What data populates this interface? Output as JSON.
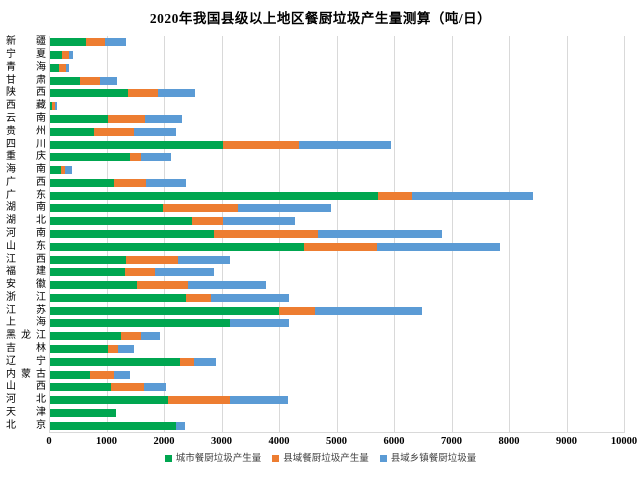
{
  "chart_data": {
    "type": "bar",
    "orientation": "horizontal",
    "stacked": true,
    "title": "2020年我国县级以上地区餐厨垃圾产生量测算（吨/日）",
    "xlim": [
      0,
      10000
    ],
    "x_ticks": [
      0,
      1000,
      2000,
      3000,
      4000,
      5000,
      6000,
      7000,
      8000,
      9000,
      10000
    ],
    "grid": "vertical",
    "legend_position": "bottom",
    "categories": [
      "新疆",
      "宁夏",
      "青海",
      "甘肃",
      "陕西",
      "西藏",
      "云南",
      "贵州",
      "四川",
      "重庆",
      "海南",
      "广西",
      "广东",
      "湖南",
      "湖北",
      "河南",
      "山东",
      "江西",
      "福建",
      "安徽",
      "浙江",
      "江苏",
      "上海",
      "黑龙江",
      "吉林",
      "辽宁",
      "内蒙古",
      "山西",
      "河北",
      "天津",
      "北京"
    ],
    "series": [
      {
        "name": "城市餐厨垃圾产生量",
        "color": "#00A650",
        "values": [
          640,
          220,
          180,
          540,
          1380,
          60,
          1030,
          790,
          3030,
          1410,
          210,
          1135,
          5715,
          1990,
          2485,
          2870,
          4430,
          1340,
          1320,
          1530,
          2375,
          4000,
          3150,
          1260,
          1025,
          2270,
          705,
          1080,
          2070,
          1165,
          2210
        ]
      },
      {
        "name": "县域餐厨垃圾产生量",
        "color": "#ED7D31",
        "values": [
          335,
          130,
          110,
          350,
          520,
          45,
          640,
          695,
          1320,
          190,
          70,
          545,
          590,
          1300,
          535,
          1805,
          1280,
          895,
          530,
          890,
          445,
          625,
          0,
          340,
          175,
          255,
          420,
          570,
          1075,
          0,
          0
        ]
      },
      {
        "name": "县域乡镇餐厨垃圾量",
        "color": "#5B9BD5",
        "values": [
          365,
          75,
          60,
          290,
          640,
          30,
          640,
          720,
          1600,
          515,
          115,
          700,
          2105,
          1615,
          1250,
          2160,
          2140,
          905,
          1020,
          1355,
          1355,
          1860,
          1030,
          335,
          275,
          385,
          285,
          390,
          1010,
          0,
          150
        ]
      }
    ]
  },
  "style": {
    "gridline_color": "#D9D9D9",
    "axis_color": "#D9D9D9",
    "text_color": "#000000",
    "background": "#FFFFFF"
  }
}
